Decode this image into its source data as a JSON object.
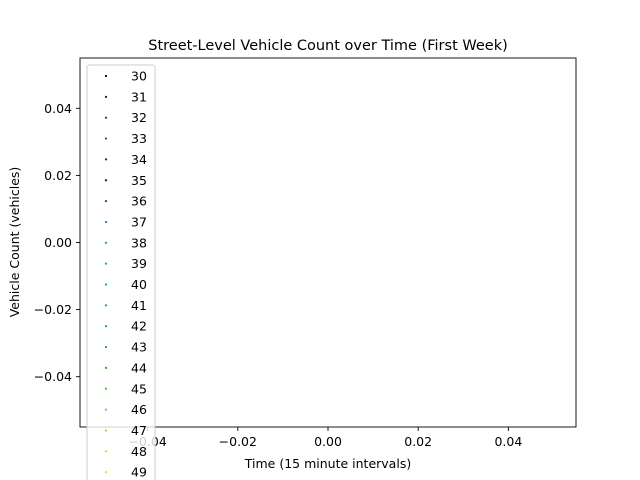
{
  "chart_data": {
    "type": "scatter",
    "title": "Street-Level Vehicle Count over Time (First Week)",
    "xlabel": "Time (15 minute intervals)",
    "ylabel": "Vehicle Count (vehicles)",
    "xlim": [
      -0.055,
      0.055
    ],
    "ylim": [
      -0.055,
      0.055
    ],
    "x_ticks": [
      -0.04,
      -0.02,
      0.0,
      0.02,
      0.04
    ],
    "x_tick_labels": [
      "−0.04",
      "−0.02",
      "0.00",
      "0.02",
      "0.04"
    ],
    "y_ticks": [
      0.04,
      0.02,
      0.0,
      -0.02,
      -0.04
    ],
    "y_tick_labels": [
      "0.04",
      "0.02",
      "0.00",
      "−0.02",
      "−0.04"
    ],
    "grid": false,
    "legend_placement": "upper-left",
    "series": [
      {
        "name": "30",
        "color": "#000000",
        "values": []
      },
      {
        "name": "31",
        "color": "#3a0a44",
        "values": []
      },
      {
        "name": "32",
        "color": "#7a0a7e",
        "values": []
      },
      {
        "name": "33",
        "color": "#7d0f96",
        "values": []
      },
      {
        "name": "34",
        "color": "#2a1277",
        "values": []
      },
      {
        "name": "35",
        "color": "#1a0a55",
        "values": []
      },
      {
        "name": "36",
        "color": "#2f3fa0",
        "values": []
      },
      {
        "name": "37",
        "color": "#1f6ed4",
        "values": []
      },
      {
        "name": "38",
        "color": "#1296c8",
        "values": []
      },
      {
        "name": "39",
        "color": "#0aa8b0",
        "values": []
      },
      {
        "name": "40",
        "color": "#0aa89a",
        "values": []
      },
      {
        "name": "41",
        "color": "#0aa582",
        "values": []
      },
      {
        "name": "42",
        "color": "#0a9e6a",
        "values": []
      },
      {
        "name": "43",
        "color": "#0aa80a",
        "values": []
      },
      {
        "name": "44",
        "color": "#14b814",
        "values": []
      },
      {
        "name": "45",
        "color": "#2ed42e",
        "values": []
      },
      {
        "name": "46",
        "color": "#52e052",
        "values": []
      },
      {
        "name": "47",
        "color": "#8ee03a",
        "values": []
      },
      {
        "name": "48",
        "color": "#c8e00a",
        "values": []
      },
      {
        "name": "49",
        "color": "#e6e60a",
        "values": []
      }
    ]
  }
}
